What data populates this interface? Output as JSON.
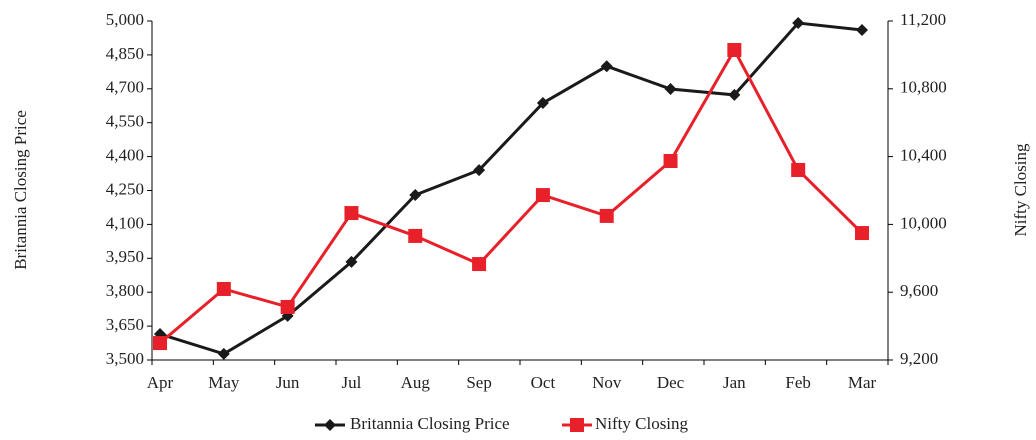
{
  "chart_data": {
    "type": "line",
    "categories": [
      "Apr",
      "May",
      "Jun",
      "Jul",
      "Aug",
      "Sep",
      "Oct",
      "Nov",
      "Dec",
      "Jan",
      "Feb",
      "Mar"
    ],
    "series": [
      {
        "name": "Britannia Closing Price",
        "color": "#1a1a1a",
        "marker": "diamond",
        "values": [
          3615,
          3527,
          3695,
          3934,
          4230,
          4340,
          4637,
          4800,
          4699,
          4673,
          4991,
          4960
        ]
      },
      {
        "name": "Nifty Closing",
        "color": "#e8202a",
        "marker": "square",
        "axis": "y2",
        "values": [
          9300,
          9619,
          9513,
          10067,
          9932,
          9766,
          10173,
          10050,
          10374,
          11029,
          10321,
          9949
        ]
      }
    ],
    "y_label": "Britannia Closing Price",
    "y2_label": "Nifty Closing",
    "ylim": [
      3500,
      5000
    ],
    "yticks": [
      {
        "value": 3500,
        "label": "3,500"
      },
      {
        "value": 3650,
        "label": "3,650"
      },
      {
        "value": 3800,
        "label": "3,800"
      },
      {
        "value": 3950,
        "label": "3,950"
      },
      {
        "value": 4100,
        "label": "4,100"
      },
      {
        "value": 4250,
        "label": "4,250"
      },
      {
        "value": 4400,
        "label": "4,400"
      },
      {
        "value": 4550,
        "label": "4,550"
      },
      {
        "value": 4700,
        "label": "4,700"
      },
      {
        "value": 4850,
        "label": "4,850"
      },
      {
        "value": 5000,
        "label": "5,000"
      }
    ],
    "y2lim": [
      9200,
      11200
    ],
    "y2ticks": [
      {
        "value": 9200,
        "label": "9,200"
      },
      {
        "value": 9600,
        "label": "9,600"
      },
      {
        "value": 10000,
        "label": "10,000"
      },
      {
        "value": 10400,
        "label": "10,400"
      },
      {
        "value": 10800,
        "label": "10,800"
      },
      {
        "value": 11200,
        "label": "11,200"
      }
    ],
    "legend": "bottom"
  }
}
